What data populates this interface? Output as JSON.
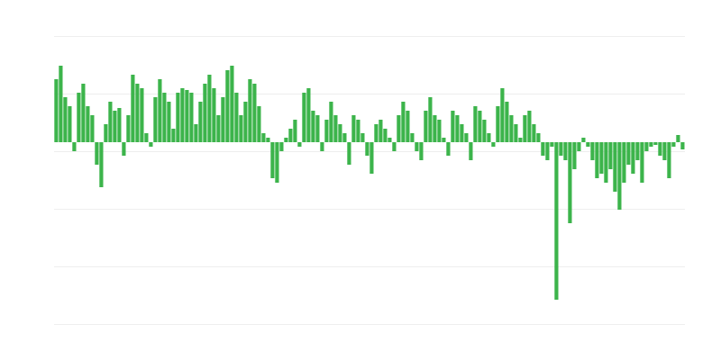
{
  "chart_data": {
    "type": "bar",
    "values": [
      70,
      85,
      50,
      40,
      -10,
      55,
      65,
      40,
      30,
      -25,
      -50,
      20,
      45,
      35,
      38,
      -15,
      30,
      75,
      65,
      60,
      10,
      -5,
      50,
      70,
      55,
      45,
      15,
      55,
      60,
      58,
      55,
      20,
      45,
      65,
      75,
      60,
      30,
      50,
      80,
      85,
      55,
      30,
      45,
      70,
      65,
      40,
      10,
      5,
      -40,
      -45,
      -10,
      5,
      15,
      25,
      -5,
      55,
      60,
      35,
      30,
      -10,
      25,
      45,
      30,
      20,
      10,
      -25,
      30,
      25,
      10,
      -15,
      -35,
      20,
      25,
      15,
      5,
      -10,
      30,
      45,
      35,
      10,
      -10,
      -20,
      35,
      50,
      30,
      25,
      5,
      -15,
      35,
      30,
      20,
      10,
      -20,
      40,
      35,
      25,
      10,
      -5,
      40,
      60,
      45,
      30,
      20,
      5,
      30,
      35,
      20,
      10,
      -15,
      -20,
      -5,
      -175,
      -15,
      -20,
      -90,
      -30,
      -10,
      5,
      -5,
      -20,
      -40,
      -35,
      -45,
      -30,
      -55,
      -75,
      -45,
      -25,
      -35,
      -20,
      -45,
      -10,
      -5,
      -3,
      -15,
      -20,
      -40,
      -5,
      8,
      -8
    ],
    "color": "#3cb44b",
    "ylim": [
      -202,
      118
    ],
    "yticks": [
      118,
      54,
      -10,
      -74,
      -138,
      -202
    ],
    "grid": true
  }
}
